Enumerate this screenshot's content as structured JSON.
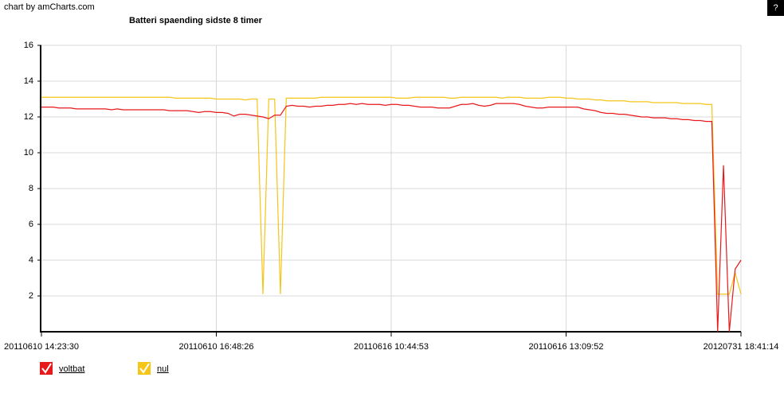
{
  "credit": "chart by amCharts.com",
  "help_button": "?",
  "chart_data": {
    "type": "line",
    "title": "Batteri spaending sidste 8 timer",
    "categories": [
      "20110610 14:23:30",
      null,
      null,
      null,
      null,
      null,
      null,
      null,
      null,
      null,
      null,
      null,
      null,
      null,
      null,
      null,
      null,
      null,
      null,
      null,
      null,
      null,
      null,
      null,
      null,
      null,
      null,
      null,
      null,
      null,
      "20110610 16:48:26",
      null,
      null,
      null,
      null,
      null,
      null,
      null,
      null,
      null,
      null,
      null,
      null,
      null,
      null,
      null,
      null,
      null,
      null,
      null,
      null,
      null,
      null,
      null,
      null,
      null,
      null,
      null,
      null,
      null,
      "20110616 10:44:53",
      null,
      null,
      null,
      null,
      null,
      null,
      null,
      null,
      null,
      null,
      null,
      null,
      null,
      null,
      null,
      null,
      null,
      null,
      null,
      null,
      null,
      null,
      null,
      null,
      null,
      null,
      null,
      null,
      null,
      "20110616 13:09:52",
      null,
      null,
      null,
      null,
      null,
      null,
      null,
      null,
      null,
      null,
      null,
      null,
      null,
      null,
      null,
      null,
      null,
      null,
      null,
      null,
      null,
      null,
      null,
      null,
      null,
      null,
      null,
      null,
      null,
      "20120731 18:41:14"
    ],
    "series": [
      {
        "name": "voltbat",
        "color": "#e8191c",
        "values": [
          12.55,
          12.55,
          12.55,
          12.5,
          12.5,
          12.5,
          12.45,
          12.45,
          12.45,
          12.45,
          12.45,
          12.45,
          12.4,
          12.45,
          12.4,
          12.4,
          12.4,
          12.4,
          12.4,
          12.4,
          12.4,
          12.4,
          12.35,
          12.35,
          12.35,
          12.35,
          12.3,
          12.25,
          12.3,
          12.3,
          12.25,
          12.25,
          12.2,
          12.05,
          12.15,
          12.15,
          12.1,
          12.05,
          12.0,
          11.9,
          12.1,
          12.1,
          12.6,
          12.65,
          12.6,
          12.6,
          12.55,
          12.6,
          12.6,
          12.65,
          12.65,
          12.7,
          12.7,
          12.75,
          12.7,
          12.75,
          12.7,
          12.7,
          12.7,
          12.65,
          12.7,
          12.7,
          12.65,
          12.65,
          12.6,
          12.55,
          12.55,
          12.55,
          12.5,
          12.5,
          12.5,
          12.6,
          12.7,
          12.7,
          12.75,
          12.65,
          12.6,
          12.65,
          12.75,
          12.75,
          12.75,
          12.75,
          12.7,
          12.6,
          12.55,
          12.5,
          12.5,
          12.55,
          12.55,
          12.55,
          12.55,
          12.55,
          12.55,
          12.45,
          12.4,
          12.35,
          12.25,
          12.2,
          12.2,
          12.15,
          12.15,
          12.1,
          12.05,
          12.0,
          12.0,
          11.95,
          11.95,
          11.95,
          11.9,
          11.9,
          11.85,
          11.85,
          11.8,
          11.8,
          11.75,
          11.75,
          0,
          9.3,
          0,
          3.5,
          4.0
        ]
      },
      {
        "name": "nul",
        "color": "#f5c518",
        "values": [
          13.1,
          13.1,
          13.1,
          13.1,
          13.1,
          13.1,
          13.1,
          13.1,
          13.1,
          13.1,
          13.1,
          13.1,
          13.1,
          13.1,
          13.1,
          13.1,
          13.1,
          13.1,
          13.1,
          13.1,
          13.1,
          13.1,
          13.1,
          13.05,
          13.05,
          13.05,
          13.05,
          13.05,
          13.05,
          13.05,
          13.0,
          13.0,
          13.0,
          13.0,
          13.0,
          12.95,
          13.0,
          13.0,
          2.1,
          13.0,
          13.0,
          2.1,
          13.05,
          13.05,
          13.05,
          13.05,
          13.05,
          13.05,
          13.1,
          13.1,
          13.1,
          13.1,
          13.1,
          13.1,
          13.1,
          13.1,
          13.1,
          13.1,
          13.1,
          13.1,
          13.1,
          13.05,
          13.05,
          13.05,
          13.1,
          13.1,
          13.1,
          13.1,
          13.1,
          13.1,
          13.05,
          13.05,
          13.1,
          13.1,
          13.1,
          13.1,
          13.1,
          13.1,
          13.1,
          13.05,
          13.1,
          13.1,
          13.1,
          13.05,
          13.05,
          13.05,
          13.05,
          13.1,
          13.1,
          13.1,
          13.05,
          13.05,
          13.0,
          13.0,
          13.0,
          12.95,
          12.95,
          12.9,
          12.9,
          12.9,
          12.9,
          12.85,
          12.85,
          12.85,
          12.85,
          12.8,
          12.8,
          12.8,
          12.8,
          12.8,
          12.75,
          12.75,
          12.75,
          12.75,
          12.7,
          12.7,
          2.1,
          2.1,
          2.1,
          3.3,
          2.1
        ]
      }
    ],
    "ylim": [
      0,
      16
    ],
    "yticks": [
      2,
      4,
      6,
      8,
      10,
      12,
      14,
      16
    ],
    "grid": true
  }
}
